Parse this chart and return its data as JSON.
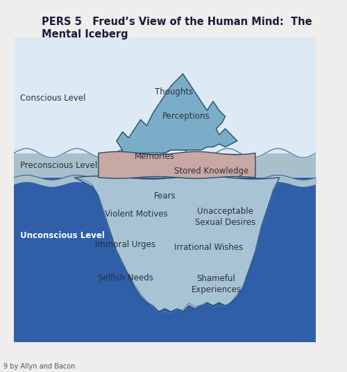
{
  "title_line1": "PERS 5   Freud’s View of the Human Mind:  The",
  "title_line2": "Mental Iceberg",
  "background_color": "#f0eded",
  "sky_color": "#ddeaf5",
  "precon_water_color": "#a8c0cc",
  "deep_water_color": "#2e5fa8",
  "iceberg_tip_color": "#7aaec8",
  "iceberg_precon_color": "#c8a8a2",
  "iceberg_sub_color": "#a8c4d4",
  "copyright": "9 by Allyn and Bacon",
  "labels": {
    "conscious": "Conscious Level",
    "preconscious": "Preconscious Level",
    "unconscious": "Unconscious Level",
    "thoughts": "Thoughts",
    "perceptions": "Perceptions",
    "memories": "Memories",
    "stored_knowledge": "Stored Knowledge",
    "fears": "Fears",
    "violent_motives": "Violent Motives",
    "unacceptable": "Unacceptable\nSexual Desires",
    "immoral_urges": "Immoral Urges",
    "irrational_wishes": "Irrational Wishes",
    "selfish_needs": "Selfish Needs",
    "shameful": "Shameful\nExperiences"
  }
}
